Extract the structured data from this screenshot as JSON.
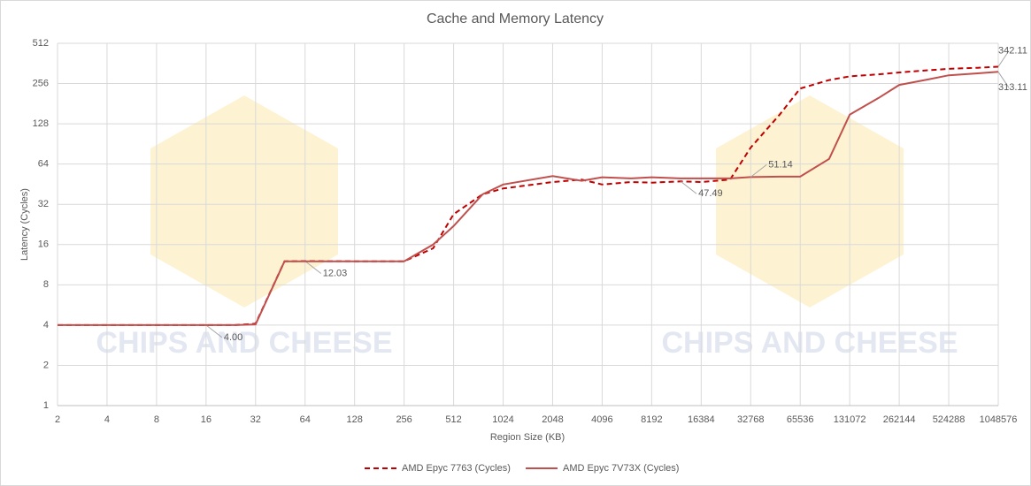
{
  "chart_data": {
    "type": "line",
    "title": "Cache and Memory Latency",
    "x_label": "Region Size (KB)",
    "y_label": "Latency (Cycles)",
    "watermark": "CHIPS AND CHEESE",
    "x": [
      2,
      4,
      8,
      16,
      24,
      32,
      48,
      64,
      128,
      256,
      384,
      512,
      768,
      1024,
      2048,
      3072,
      4096,
      6144,
      8192,
      12288,
      16384,
      24576,
      32768,
      49152,
      65536,
      98304,
      131072,
      196608,
      262144,
      393216,
      524288,
      786432,
      1048576
    ],
    "series": [
      {
        "name": "AMD Epyc 7763 (Cycles)",
        "color": "#c00000",
        "dashed": true,
        "values": [
          4,
          4,
          4,
          4,
          4,
          4.1,
          12,
          12.03,
          12,
          12,
          15,
          27,
          38,
          42,
          47,
          49,
          45,
          47,
          46.5,
          47.49,
          47,
          49,
          85,
          150,
          235,
          272,
          290,
          300,
          310,
          322,
          330,
          336,
          342.11
        ],
        "value_labels": [
          null,
          null,
          null,
          "4.00",
          null,
          null,
          null,
          "12.03",
          null,
          null,
          null,
          null,
          null,
          null,
          null,
          null,
          null,
          null,
          null,
          "47.49",
          null,
          null,
          null,
          null,
          null,
          null,
          null,
          null,
          null,
          null,
          null,
          null,
          "342.11"
        ]
      },
      {
        "name": "AMD Epyc 7V73X (Cycles)",
        "color": "#c0504d",
        "dashed": false,
        "values": [
          4,
          4,
          4,
          4,
          4,
          4.05,
          12,
          12,
          12,
          12,
          16,
          22,
          38,
          45,
          52,
          48,
          51,
          50,
          51,
          50,
          50,
          50,
          51.14,
          51.5,
          51.5,
          70,
          150,
          200,
          250,
          275,
          295,
          305,
          313.11
        ],
        "value_labels": [
          null,
          null,
          null,
          null,
          null,
          null,
          null,
          null,
          null,
          null,
          null,
          null,
          null,
          null,
          null,
          null,
          null,
          null,
          null,
          null,
          null,
          null,
          "51.14",
          null,
          null,
          null,
          null,
          null,
          null,
          null,
          null,
          null,
          "313.11"
        ]
      }
    ],
    "xlog": 2,
    "ylog": 2,
    "xlim": [
      2,
      1048576
    ],
    "ylim": [
      1,
      512
    ],
    "xticks": [
      2,
      4,
      8,
      16,
      32,
      64,
      128,
      256,
      512,
      1024,
      2048,
      4096,
      8192,
      16384,
      32768,
      65536,
      131072,
      262144,
      524288,
      1048576
    ],
    "yticks": [
      1,
      2,
      4,
      8,
      16,
      32,
      64,
      128,
      256,
      512
    ],
    "grid": true,
    "legend": "bottom"
  }
}
